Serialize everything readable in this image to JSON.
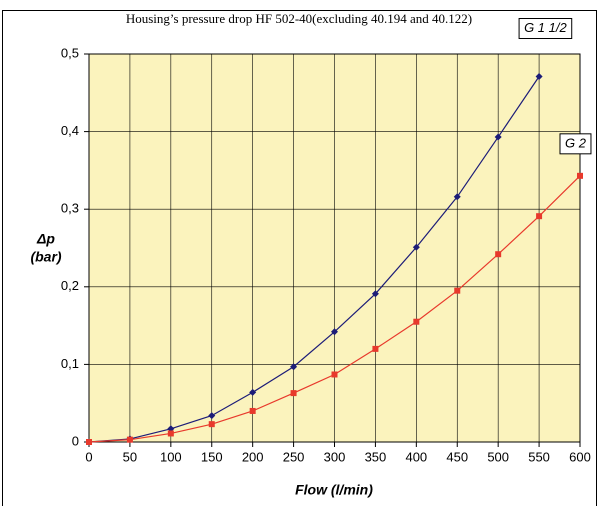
{
  "chart_data": {
    "type": "line",
    "title": "Housing’s pressure drop HF 502-40(excluding 40.194 and 40.122)",
    "x_label": "Flow (l/min)",
    "y_label": "Δp",
    "y_unit": "(bar)",
    "x": [
      0,
      50,
      100,
      150,
      200,
      250,
      300,
      350,
      400,
      450,
      500,
      550,
      600
    ],
    "series": [
      {
        "name": "G 1 1/2",
        "color": "#1c1c78",
        "marker": "diamond",
        "values": [
          0,
          0.004,
          0.017,
          0.034,
          0.064,
          0.097,
          0.142,
          0.191,
          0.251,
          0.316,
          0.393,
          0.471,
          null
        ]
      },
      {
        "name": "G 2",
        "color": "#e8392c",
        "marker": "square",
        "values": [
          0,
          0.003,
          0.011,
          0.023,
          0.04,
          0.063,
          0.087,
          0.12,
          0.155,
          0.195,
          0.242,
          0.291,
          0.343
        ]
      }
    ],
    "xlim": [
      0,
      600
    ],
    "xticks": [
      0,
      50,
      100,
      150,
      200,
      250,
      300,
      350,
      400,
      450,
      500,
      550,
      600
    ],
    "ylim": [
      0,
      0.5
    ],
    "yticks": [
      0,
      {
        "value": 0.1,
        "label": "0,1"
      },
      {
        "value": 0.2,
        "label": "0,2"
      },
      {
        "value": 0.3,
        "label": "0,3"
      },
      {
        "value": 0.4,
        "label": "0,4"
      },
      {
        "value": 0.5,
        "label": "0,5"
      }
    ],
    "grid": true,
    "background": "#fbf3bd"
  }
}
